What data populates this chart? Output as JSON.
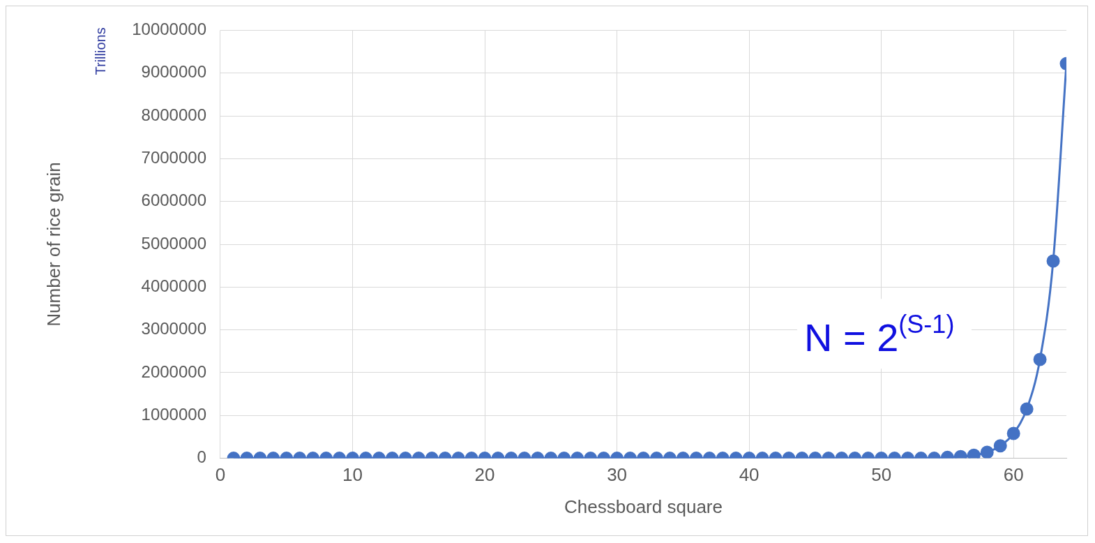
{
  "chart_data": {
    "type": "line",
    "xlabel": "Chessboard square",
    "ylabel": "Number of rice grain",
    "x": [
      1,
      2,
      3,
      4,
      5,
      6,
      7,
      8,
      9,
      10,
      11,
      12,
      13,
      14,
      15,
      16,
      17,
      18,
      19,
      20,
      21,
      22,
      23,
      24,
      25,
      26,
      27,
      28,
      29,
      30,
      31,
      32,
      33,
      34,
      35,
      36,
      37,
      38,
      39,
      40,
      41,
      42,
      43,
      44,
      45,
      46,
      47,
      48,
      49,
      50,
      51,
      52,
      53,
      54,
      55,
      56,
      57,
      58,
      59,
      60,
      61,
      62,
      63,
      64
    ],
    "series": [
      {
        "color": "#4472c4",
        "values": [
          0,
          0,
          0,
          0,
          0,
          0,
          0,
          0,
          0,
          0,
          0,
          0,
          0,
          0,
          0,
          0,
          0,
          0,
          0,
          0,
          0,
          0,
          0,
          0,
          0,
          0,
          0,
          0,
          0,
          0,
          0,
          0,
          0,
          0,
          0,
          0,
          0,
          0,
          0,
          0,
          0,
          0,
          0,
          0,
          0,
          0,
          0,
          0,
          0,
          0,
          0,
          0,
          0,
          0,
          20000,
          40000,
          70000,
          140000,
          290000,
          580000,
          1150000,
          2310000,
          4610000,
          9220000
        ]
      }
    ],
    "xlim": [
      0,
      64
    ],
    "xticks": [
      0,
      10,
      20,
      30,
      40,
      50,
      60
    ],
    "ylim": [
      0,
      10000000
    ],
    "yticks": [
      0,
      1000000,
      2000000,
      3000000,
      4000000,
      5000000,
      6000000,
      7000000,
      8000000,
      9000000,
      10000000
    ],
    "grid": true,
    "marker": "circle",
    "line_style": "solid",
    "legend": false,
    "annotations": [
      "Trillions",
      "N = 2$^{(S-1)}$"
    ]
  }
}
